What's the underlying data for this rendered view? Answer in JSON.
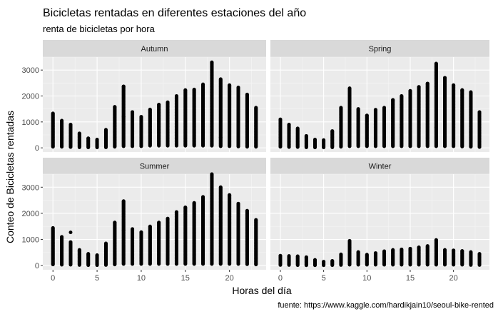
{
  "chart_data": {
    "type": "scatter",
    "title": "Bicicletas rentadas en diferentes estaciones del año",
    "subtitle": "renta de bicicletas por hora",
    "xlabel": "Horas del día",
    "ylabel": "Conteo de Bicicletas rentadas",
    "caption": "fuente: https://www.kaggle.com/hardikjain10/seoul-bike-rented",
    "xlim": [
      -1.15,
      24.15
    ],
    "ylim": [
      -160,
      3500
    ],
    "x_ticks": [
      0,
      5,
      10,
      15,
      20
    ],
    "y_ticks": [
      0,
      1000,
      2000,
      3000
    ],
    "grid": true,
    "facets": [
      {
        "name": "Autumn",
        "hours": [
          0,
          1,
          2,
          3,
          4,
          5,
          6,
          7,
          8,
          9,
          10,
          11,
          12,
          13,
          14,
          15,
          16,
          17,
          18,
          19,
          20,
          21,
          22,
          23
        ],
        "min": [
          40,
          40,
          30,
          20,
          15,
          15,
          20,
          40,
          60,
          60,
          60,
          80,
          80,
          80,
          80,
          80,
          80,
          80,
          80,
          60,
          60,
          50,
          40,
          40
        ],
        "max": [
          1330,
          1050,
          900,
          560,
          370,
          320,
          700,
          1580,
          2370,
          1380,
          1200,
          1480,
          1670,
          1760,
          2000,
          2230,
          2250,
          2450,
          3300,
          2650,
          2420,
          2330,
          2060,
          1550
        ],
        "outliers": [
          {
            "x": 8,
            "y": 1200
          },
          {
            "x": 22,
            "y": 170
          },
          {
            "x": 19,
            "y": 400
          }
        ]
      },
      {
        "name": "Spring",
        "hours": [
          0,
          1,
          2,
          3,
          4,
          5,
          6,
          7,
          8,
          9,
          10,
          11,
          12,
          13,
          14,
          15,
          16,
          17,
          18,
          19,
          20,
          21,
          22,
          23
        ],
        "min": [
          40,
          30,
          30,
          20,
          15,
          15,
          20,
          40,
          60,
          60,
          60,
          60,
          60,
          60,
          60,
          60,
          60,
          60,
          60,
          60,
          60,
          50,
          40,
          30
        ],
        "max": [
          1100,
          900,
          750,
          460,
          320,
          300,
          650,
          1550,
          2300,
          1500,
          1250,
          1470,
          1550,
          1850,
          2000,
          2200,
          2350,
          2480,
          3250,
          2700,
          2420,
          2230,
          2150,
          1380
        ],
        "outliers": [
          {
            "x": 8,
            "y": 1350
          },
          {
            "x": 13,
            "y": 1850
          },
          {
            "x": 18,
            "y": 800
          }
        ]
      },
      {
        "name": "Summer",
        "hours": [
          0,
          1,
          2,
          3,
          4,
          5,
          6,
          7,
          8,
          9,
          10,
          11,
          12,
          13,
          14,
          15,
          16,
          17,
          18,
          19,
          20,
          21,
          22,
          23
        ],
        "min": [
          40,
          30,
          30,
          20,
          15,
          15,
          20,
          40,
          60,
          60,
          60,
          60,
          60,
          60,
          60,
          60,
          60,
          60,
          60,
          60,
          60,
          60,
          50,
          40
        ],
        "max": [
          1440,
          1100,
          900,
          600,
          450,
          400,
          850,
          1650,
          2470,
          1400,
          1280,
          1500,
          1650,
          1800,
          2050,
          2230,
          2400,
          2630,
          3500,
          3000,
          2700,
          2370,
          2100,
          1750
        ],
        "outliers": [
          {
            "x": 2,
            "y": 1270
          },
          {
            "x": 8,
            "y": 1350
          },
          {
            "x": 14,
            "y": 2050
          },
          {
            "x": 18,
            "y": 450
          },
          {
            "x": 22,
            "y": 600
          }
        ]
      },
      {
        "name": "Winter",
        "hours": [
          0,
          1,
          2,
          3,
          4,
          5,
          6,
          7,
          8,
          9,
          10,
          11,
          12,
          13,
          14,
          15,
          16,
          17,
          18,
          19,
          20,
          21,
          22,
          23
        ],
        "min": [
          20,
          20,
          15,
          10,
          10,
          10,
          15,
          20,
          30,
          30,
          30,
          30,
          30,
          30,
          30,
          30,
          30,
          30,
          30,
          30,
          30,
          30,
          20,
          20
        ],
        "max": [
          380,
          370,
          360,
          320,
          220,
          150,
          180,
          430,
          950,
          520,
          420,
          480,
          550,
          600,
          620,
          650,
          700,
          750,
          980,
          600,
          580,
          560,
          520,
          450
        ],
        "outliers": []
      }
    ]
  }
}
